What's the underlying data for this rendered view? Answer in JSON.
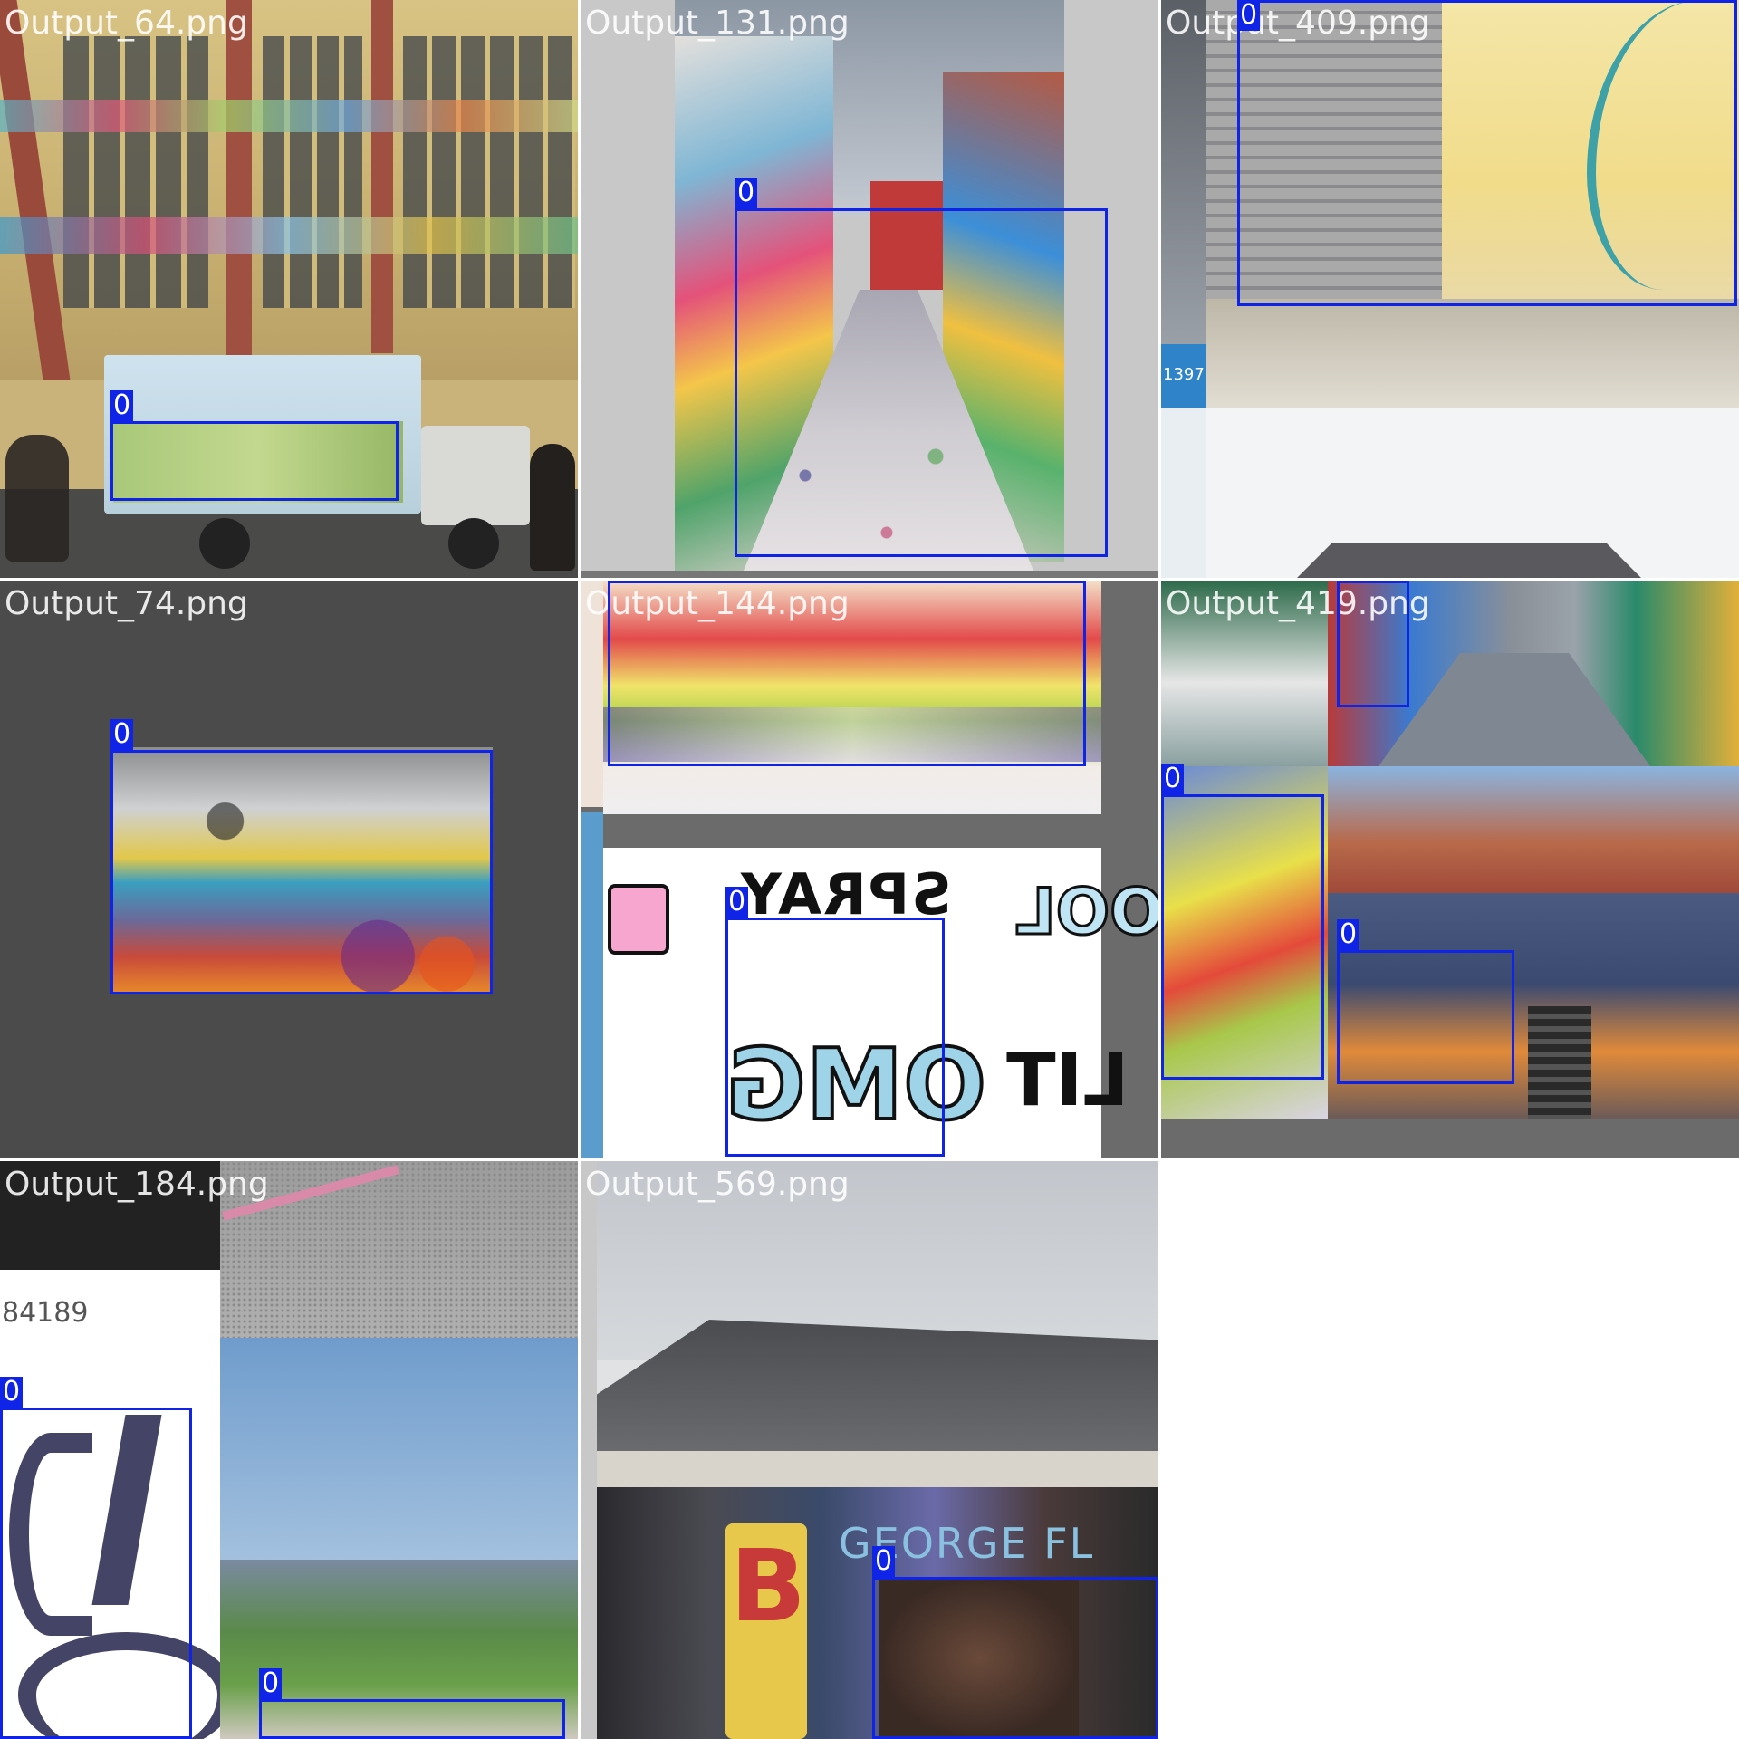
{
  "tiles": [
    {
      "filename": "Output_64.png",
      "labels": [
        "0"
      ]
    },
    {
      "filename": "Output_131.png",
      "labels": [
        "0"
      ]
    },
    {
      "filename": "Output_409.png",
      "labels": [
        "0"
      ],
      "inline_text": "1397"
    },
    {
      "filename": "Output_74.png",
      "labels": [
        "0"
      ]
    },
    {
      "filename": "Output_144.png",
      "labels": [
        "0",
        "0"
      ],
      "art_text": [
        "SPRAY",
        "OMG",
        "COOL",
        "LIT"
      ]
    },
    {
      "filename": "Output_419.png",
      "labels": [
        "0",
        "0",
        "0"
      ]
    },
    {
      "filename": "Output_184.png",
      "labels": [
        "0",
        "0"
      ],
      "inline_text": "84189"
    },
    {
      "filename": "Output_569.png",
      "labels": [
        "0"
      ],
      "art_text": [
        "GEORGE FL",
        "B"
      ]
    }
  ],
  "colors": {
    "box": "#1024e8",
    "label_text": "#ffffff",
    "filename_text": "#ffffff",
    "letterbox": "#4b4b4b",
    "divider": "#ffffff"
  }
}
